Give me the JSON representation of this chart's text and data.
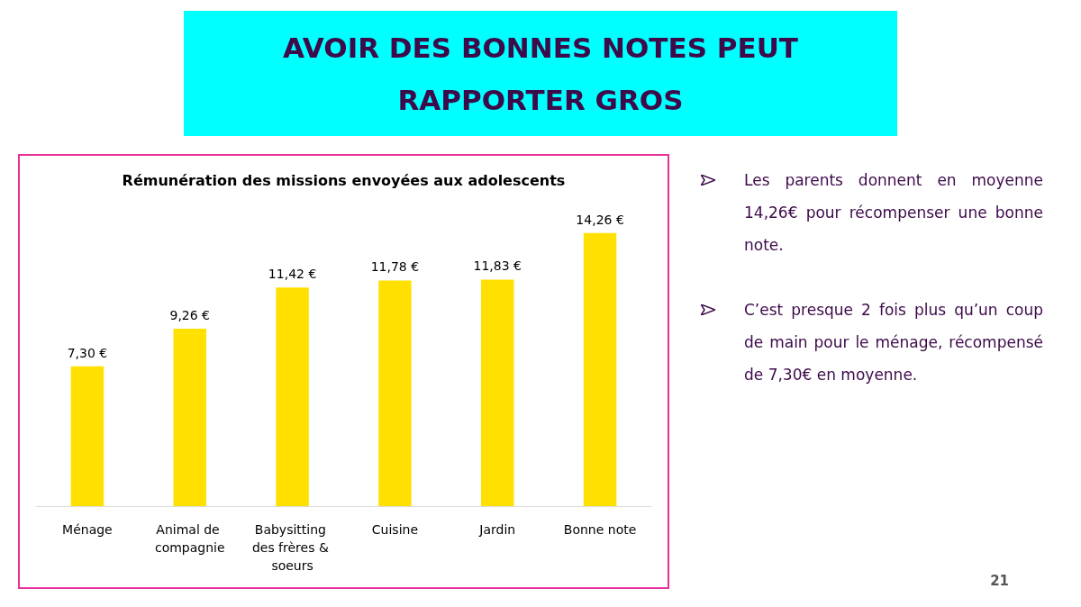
{
  "chart_data": {
    "type": "bar",
    "title": "AVOIR DES BONNES NOTES PEUT RAPPORTER GROS",
    "subtitle": "Rémunération des missions envoyées aux adolescents",
    "categories": [
      "Ménage",
      "Animal de compagnie",
      "Babysitting des frères & soeurs",
      "Cuisine",
      "Jardin",
      "Bonne note"
    ],
    "values": [
      7.3,
      9.26,
      11.42,
      11.78,
      11.83,
      14.26
    ],
    "value_labels": [
      "7,30 €",
      "9,26 €",
      "11,42 €",
      "11,78 €",
      "11,83 €",
      "14,26 €"
    ],
    "color": "#ffe000",
    "annotations": [
      "Les parents donnent en moyenne 14,26€ pour récompenser une bonne note.",
      "C’est presque 2 fois plus qu’un coup de main pour le ménage, récompensé de 7,30€ en moyenne.",
      "21"
    ]
  }
}
